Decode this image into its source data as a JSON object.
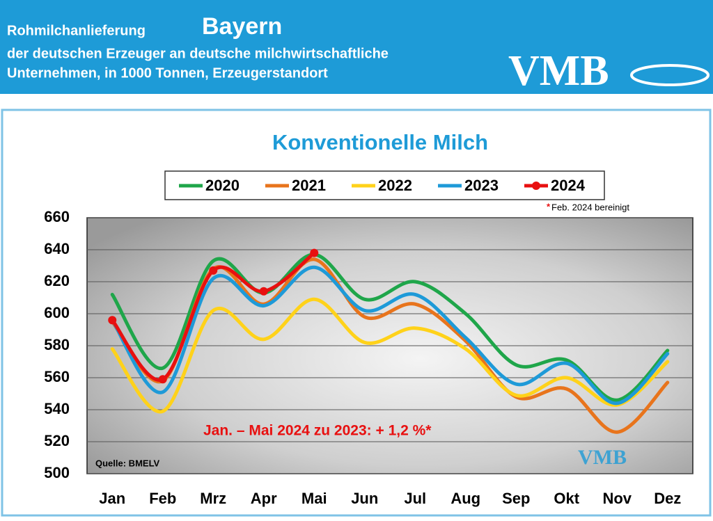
{
  "header": {
    "title_prefix": "Rohmilchanlieferung",
    "title_region": "Bayern",
    "subtitle_line1": "der deutschen Erzeuger an deutsche milchwirtschaftliche",
    "subtitle_line2": "Unternehmen, in 1000 Tonnen, Erzeugerstandort",
    "logo": "VMB"
  },
  "chart_data": {
    "type": "line",
    "title": "Konventionelle Milch",
    "footnote_marker": "*",
    "footnote": "Feb. 2024 bereinigt",
    "annotation": "Jan. – Mai 2024 zu 2023: + 1,2 %*",
    "source": "Quelle: BMELV",
    "watermark": "VMB",
    "categories": [
      "Jan",
      "Feb",
      "Mrz",
      "Apr",
      "Mai",
      "Jun",
      "Jul",
      "Aug",
      "Sep",
      "Okt",
      "Nov",
      "Dez"
    ],
    "series": [
      {
        "name": "2020",
        "color": "#1fa64a",
        "values": [
          612,
          566,
          633,
          613,
          637,
          609,
          620,
          600,
          568,
          571,
          546,
          577
        ]
      },
      {
        "name": "2021",
        "color": "#e8741c",
        "values": [
          595,
          558,
          628,
          606,
          634,
          598,
          606,
          583,
          548,
          553,
          526,
          557
        ]
      },
      {
        "name": "2022",
        "color": "#ffd21a",
        "values": [
          578,
          539,
          602,
          584,
          609,
          582,
          591,
          578,
          549,
          560,
          543,
          570
        ]
      },
      {
        "name": "2023",
        "color": "#1e9ad8",
        "values": [
          596,
          551,
          622,
          605,
          629,
          602,
          612,
          585,
          556,
          569,
          544,
          575
        ]
      },
      {
        "name": "2024",
        "color": "#e81010",
        "marker": "circle",
        "values": [
          596,
          559,
          627,
          614,
          638,
          null,
          null,
          null,
          null,
          null,
          null,
          null
        ]
      }
    ],
    "ylim": [
      500,
      660
    ],
    "yticks": [
      500,
      520,
      540,
      560,
      580,
      600,
      620,
      640,
      660
    ],
    "grid": true
  }
}
